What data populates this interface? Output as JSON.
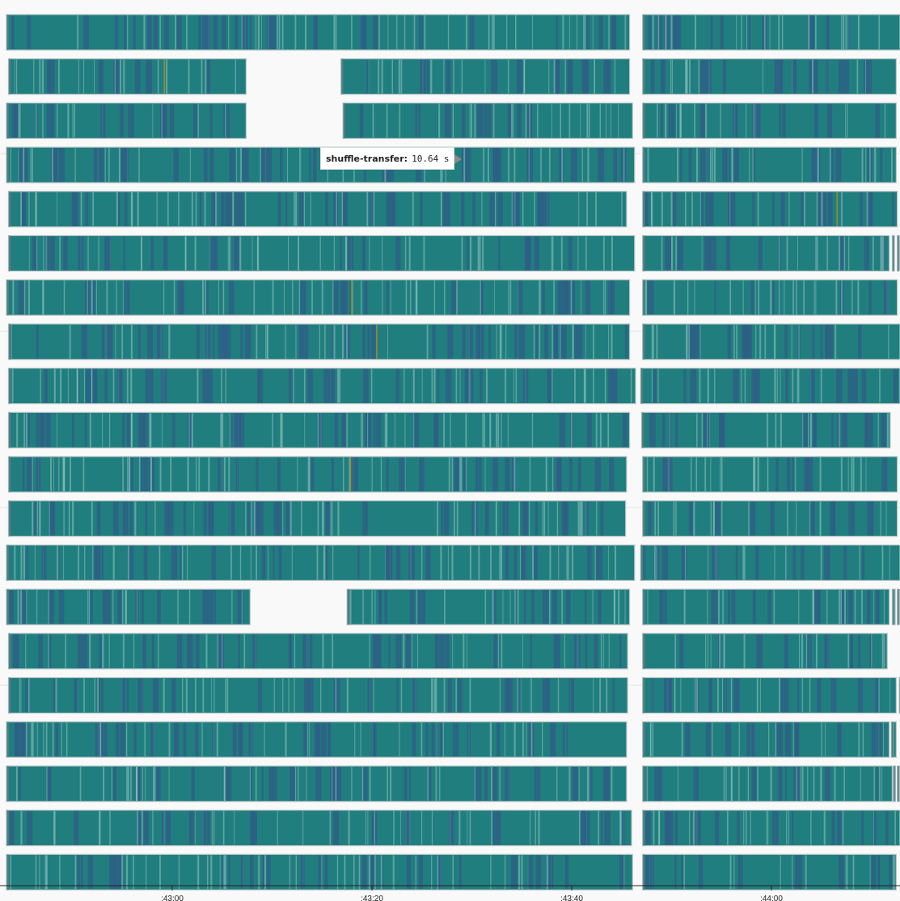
{
  "chart_data": {
    "type": "gantt",
    "x_axis": {
      "tick_labels": [
        ":43:00",
        ":43:20",
        ":43:40",
        ":44:00"
      ],
      "tick_seconds": [
        0,
        20,
        40,
        60
      ],
      "range_seconds": [
        -16.8,
        73.2
      ]
    },
    "colors": {
      "shuffle-transfer": "#217e7e",
      "light": "#8fc6c1",
      "dark": "#2e5f86",
      "gold": "#a08a2a"
    },
    "lanes": [
      {
        "segments": [
          [
            -16.6,
            45.8
          ],
          [
            47.1,
            73.2
          ]
        ]
      },
      {
        "segments": [
          [
            -16.4,
            7.4
          ],
          [
            16.9,
            45.8
          ],
          [
            47.1,
            72.5
          ]
        ]
      },
      {
        "segments": [
          [
            -16.6,
            7.4
          ],
          [
            17.1,
            46.1
          ],
          [
            47.1,
            72.5
          ]
        ]
      },
      {
        "segments": [
          [
            -16.6,
            46.3
          ],
          [
            47.1,
            72.5
          ]
        ]
      },
      {
        "segments": [
          [
            -16.4,
            45.5
          ],
          [
            47.1,
            72.6
          ]
        ]
      },
      {
        "segments": [
          [
            -16.4,
            46.3
          ],
          [
            47.1,
            71.8
          ],
          [
            72.1,
            72.3
          ],
          [
            72.6,
            72.8
          ]
        ]
      },
      {
        "segments": [
          [
            -16.6,
            45.8
          ],
          [
            47.1,
            72.6
          ]
        ]
      },
      {
        "segments": [
          [
            -16.4,
            45.8
          ],
          [
            47.1,
            73.0
          ]
        ]
      },
      {
        "segments": [
          [
            -16.4,
            46.4
          ],
          [
            46.9,
            73.2
          ]
        ]
      },
      {
        "segments": [
          [
            -16.4,
            45.8
          ],
          [
            47.0,
            71.9
          ]
        ]
      },
      {
        "segments": [
          [
            -16.4,
            45.5
          ],
          [
            47.1,
            72.6
          ]
        ]
      },
      {
        "segments": [
          [
            -16.4,
            45.4
          ],
          [
            47.1,
            72.6
          ]
        ]
      },
      {
        "segments": [
          [
            -16.6,
            46.3
          ],
          [
            46.9,
            73.1
          ]
        ]
      },
      {
        "segments": [
          [
            -16.6,
            7.8
          ],
          [
            17.5,
            45.8
          ],
          [
            47.1,
            71.8
          ],
          [
            72.1,
            72.4
          ],
          [
            72.6,
            72.8
          ]
        ]
      },
      {
        "segments": [
          [
            -16.4,
            45.6
          ],
          [
            47.1,
            71.6
          ]
        ]
      },
      {
        "segments": [
          [
            -16.4,
            45.6
          ],
          [
            47.1,
            72.5
          ],
          [
            72.8,
            73.0
          ]
        ]
      },
      {
        "segments": [
          [
            -16.6,
            45.5
          ],
          [
            47.1,
            71.8
          ],
          [
            72.0,
            72.5
          ]
        ]
      },
      {
        "segments": [
          [
            -16.6,
            45.5
          ],
          [
            47.1,
            72.1
          ],
          [
            72.2,
            72.4
          ],
          [
            72.6,
            72.8
          ]
        ]
      },
      {
        "segments": [
          [
            -16.6,
            46.0
          ],
          [
            47.1,
            73.2
          ]
        ]
      },
      {
        "segments": [
          [
            -16.6,
            46.1
          ],
          [
            47.1,
            72.5
          ]
        ]
      }
    ]
  },
  "tooltip": {
    "label": "shuffle-transfer:",
    "value": "10.64 s"
  }
}
